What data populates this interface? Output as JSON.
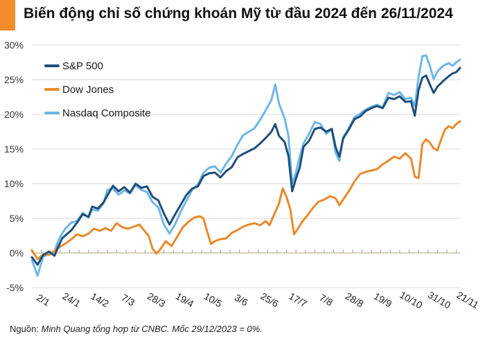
{
  "header": {
    "title": "Biến động chỉ số chứng khoán Mỹ từ đầu 2024 đến 26/11/2024",
    "accent_color": "#f28c28"
  },
  "footer": {
    "source_label": "Nguồn: ",
    "source_text": "Minh Quang tổng hợp từ CNBC. Mốc 29/12/2023 = 0%."
  },
  "chart_data": {
    "type": "line",
    "title": "Biến động chỉ số chứng khoán Mỹ từ đầu 2024 đến 26/11/2024",
    "ylim": [
      -5,
      30
    ],
    "yticks": [
      -5,
      0,
      5,
      10,
      15,
      20,
      25,
      30
    ],
    "ytick_labels": [
      "-5%",
      "0%",
      "5%",
      "10%",
      "15%",
      "20%",
      "25%",
      "30%"
    ],
    "xtick_labels": [
      "2/1",
      "24/1",
      "14/2",
      "7/3",
      "28/3",
      "19/4",
      "10/5",
      "3/6",
      "25/6",
      "17/7",
      "7/8",
      "28/8",
      "19/9",
      "10/10",
      "31/10",
      "21/11"
    ],
    "grid": "horizontal",
    "legend_position": "top-left",
    "x_index": [
      0,
      15,
      30,
      45,
      60,
      75,
      90,
      105,
      120,
      135,
      150,
      165,
      180,
      195,
      210,
      225
    ],
    "n_points": 228,
    "series": [
      {
        "name": "S&P 500",
        "color": "#1f4e79",
        "points": [
          [
            0,
            -0.6
          ],
          [
            3,
            -1.7
          ],
          [
            6,
            -0.3
          ],
          [
            9,
            0.2
          ],
          [
            12,
            -0.4
          ],
          [
            14,
            0.9
          ],
          [
            16,
            2.1
          ],
          [
            18,
            2.6
          ],
          [
            21,
            3.3
          ],
          [
            24,
            4.4
          ],
          [
            27,
            5.6
          ],
          [
            30,
            5.2
          ],
          [
            32,
            6.7
          ],
          [
            35,
            6.4
          ],
          [
            38,
            7.3
          ],
          [
            40,
            8.3
          ],
          [
            43,
            9.7
          ],
          [
            46,
            8.9
          ],
          [
            49,
            9.5
          ],
          [
            52,
            8.7
          ],
          [
            55,
            10.0
          ],
          [
            58,
            9.4
          ],
          [
            61,
            9.6
          ],
          [
            64,
            8.1
          ],
          [
            67,
            7.6
          ],
          [
            70,
            5.7
          ],
          [
            73,
            4.1
          ],
          [
            76,
            5.6
          ],
          [
            79,
            7.0
          ],
          [
            82,
            8.4
          ],
          [
            85,
            9.3
          ],
          [
            88,
            9.6
          ],
          [
            91,
            11.1
          ],
          [
            94,
            11.5
          ],
          [
            97,
            11.6
          ],
          [
            100,
            10.9
          ],
          [
            103,
            11.8
          ],
          [
            106,
            12.4
          ],
          [
            109,
            13.8
          ],
          [
            112,
            14.3
          ],
          [
            115,
            14.7
          ],
          [
            118,
            15.1
          ],
          [
            121,
            15.8
          ],
          [
            124,
            16.6
          ],
          [
            127,
            17.5
          ],
          [
            129,
            18.6
          ],
          [
            131,
            16.9
          ],
          [
            134,
            16.0
          ],
          [
            136,
            14.0
          ],
          [
            138,
            8.9
          ],
          [
            140,
            10.7
          ],
          [
            142,
            12.3
          ],
          [
            144,
            15.3
          ],
          [
            147,
            16.2
          ],
          [
            150,
            17.9
          ],
          [
            153,
            18.1
          ],
          [
            156,
            17.5
          ],
          [
            159,
            17.9
          ],
          [
            161,
            15.3
          ],
          [
            163,
            13.9
          ],
          [
            165,
            16.5
          ],
          [
            168,
            17.8
          ],
          [
            171,
            19.3
          ],
          [
            174,
            19.7
          ],
          [
            177,
            20.5
          ],
          [
            180,
            20.9
          ],
          [
            183,
            21.2
          ],
          [
            186,
            20.9
          ],
          [
            189,
            22.4
          ],
          [
            192,
            22.2
          ],
          [
            195,
            22.6
          ],
          [
            198,
            21.8
          ],
          [
            201,
            21.9
          ],
          [
            203,
            19.8
          ],
          [
            205,
            23.5
          ],
          [
            207,
            25.3
          ],
          [
            209,
            25.6
          ],
          [
            211,
            24.3
          ],
          [
            213,
            23.1
          ],
          [
            215,
            24.0
          ],
          [
            218,
            24.8
          ],
          [
            221,
            25.5
          ],
          [
            223,
            25.9
          ],
          [
            225,
            26.1
          ],
          [
            227,
            26.7
          ]
        ]
      },
      {
        "name": "Dow Jones",
        "color": "#e8892c",
        "points": [
          [
            0,
            0.4
          ],
          [
            3,
            -0.9
          ],
          [
            6,
            -0.2
          ],
          [
            9,
            -0.3
          ],
          [
            12,
            0.3
          ],
          [
            15,
            0.9
          ],
          [
            18,
            1.4
          ],
          [
            21,
            2.0
          ],
          [
            24,
            2.7
          ],
          [
            27,
            2.4
          ],
          [
            30,
            2.8
          ],
          [
            33,
            3.5
          ],
          [
            36,
            3.2
          ],
          [
            39,
            3.6
          ],
          [
            42,
            3.2
          ],
          [
            45,
            4.3
          ],
          [
            48,
            3.7
          ],
          [
            51,
            3.5
          ],
          [
            54,
            3.8
          ],
          [
            57,
            4.1
          ],
          [
            60,
            3.1
          ],
          [
            62,
            2.4
          ],
          [
            64,
            0.6
          ],
          [
            66,
            -0.1
          ],
          [
            68,
            0.5
          ],
          [
            71,
            1.7
          ],
          [
            74,
            1.0
          ],
          [
            77,
            2.3
          ],
          [
            80,
            3.7
          ],
          [
            83,
            4.5
          ],
          [
            86,
            5.1
          ],
          [
            89,
            5.3
          ],
          [
            91,
            5.0
          ],
          [
            93,
            3.0
          ],
          [
            95,
            1.3
          ],
          [
            97,
            1.7
          ],
          [
            100,
            2.0
          ],
          [
            103,
            2.1
          ],
          [
            106,
            2.9
          ],
          [
            109,
            3.3
          ],
          [
            112,
            3.8
          ],
          [
            115,
            4.1
          ],
          [
            118,
            4.3
          ],
          [
            121,
            4.0
          ],
          [
            124,
            4.6
          ],
          [
            126,
            4.0
          ],
          [
            128,
            5.3
          ],
          [
            131,
            7.1
          ],
          [
            133,
            9.3
          ],
          [
            135,
            8.1
          ],
          [
            137,
            6.3
          ],
          [
            139,
            2.7
          ],
          [
            141,
            3.5
          ],
          [
            143,
            4.4
          ],
          [
            146,
            5.4
          ],
          [
            149,
            6.5
          ],
          [
            152,
            7.4
          ],
          [
            155,
            7.7
          ],
          [
            158,
            8.2
          ],
          [
            161,
            7.9
          ],
          [
            163,
            6.9
          ],
          [
            165,
            7.7
          ],
          [
            168,
            8.9
          ],
          [
            171,
            10.3
          ],
          [
            174,
            11.4
          ],
          [
            177,
            11.7
          ],
          [
            180,
            11.9
          ],
          [
            183,
            12.1
          ],
          [
            186,
            12.8
          ],
          [
            189,
            13.3
          ],
          [
            192,
            13.9
          ],
          [
            195,
            13.6
          ],
          [
            198,
            14.4
          ],
          [
            201,
            13.6
          ],
          [
            203,
            11.0
          ],
          [
            205,
            10.8
          ],
          [
            207,
            15.7
          ],
          [
            209,
            16.4
          ],
          [
            211,
            15.9
          ],
          [
            213,
            15.1
          ],
          [
            215,
            14.8
          ],
          [
            217,
            16.4
          ],
          [
            219,
            17.8
          ],
          [
            221,
            18.3
          ],
          [
            223,
            18.0
          ],
          [
            225,
            18.6
          ],
          [
            227,
            19.0
          ]
        ]
      },
      {
        "name": "Nasdaq Composite",
        "color": "#6eb6e8",
        "points": [
          [
            0,
            -1.0
          ],
          [
            3,
            -3.3
          ],
          [
            6,
            -0.5
          ],
          [
            9,
            -0.2
          ],
          [
            12,
            0.2
          ],
          [
            14,
            1.8
          ],
          [
            16,
            2.8
          ],
          [
            18,
            3.6
          ],
          [
            21,
            4.4
          ],
          [
            24,
            4.6
          ],
          [
            27,
            5.8
          ],
          [
            30,
            5.1
          ],
          [
            32,
            6.3
          ],
          [
            35,
            6.1
          ],
          [
            38,
            7.2
          ],
          [
            40,
            9.1
          ],
          [
            43,
            9.3
          ],
          [
            46,
            8.4
          ],
          [
            49,
            9.0
          ],
          [
            52,
            8.6
          ],
          [
            55,
            9.8
          ],
          [
            58,
            9.1
          ],
          [
            61,
            8.8
          ],
          [
            64,
            7.3
          ],
          [
            67,
            6.6
          ],
          [
            70,
            4.1
          ],
          [
            73,
            2.8
          ],
          [
            76,
            4.2
          ],
          [
            79,
            6.0
          ],
          [
            82,
            7.6
          ],
          [
            85,
            9.1
          ],
          [
            88,
            9.9
          ],
          [
            91,
            11.6
          ],
          [
            94,
            12.3
          ],
          [
            97,
            12.5
          ],
          [
            100,
            11.6
          ],
          [
            103,
            12.9
          ],
          [
            106,
            14.0
          ],
          [
            109,
            15.6
          ],
          [
            112,
            17.0
          ],
          [
            115,
            17.5
          ],
          [
            118,
            18.0
          ],
          [
            121,
            19.2
          ],
          [
            124,
            20.6
          ],
          [
            127,
            22.1
          ],
          [
            129,
            24.3
          ],
          [
            131,
            21.6
          ],
          [
            134,
            19.4
          ],
          [
            136,
            16.9
          ],
          [
            138,
            10.0
          ],
          [
            140,
            11.6
          ],
          [
            142,
            13.9
          ],
          [
            144,
            15.8
          ],
          [
            147,
            17.2
          ],
          [
            150,
            18.9
          ],
          [
            153,
            18.6
          ],
          [
            156,
            17.2
          ],
          [
            159,
            17.8
          ],
          [
            161,
            14.5
          ],
          [
            163,
            13.3
          ],
          [
            165,
            16.7
          ],
          [
            168,
            18.0
          ],
          [
            171,
            19.6
          ],
          [
            174,
            20.1
          ],
          [
            177,
            20.7
          ],
          [
            180,
            21.1
          ],
          [
            183,
            21.4
          ],
          [
            186,
            21.0
          ],
          [
            189,
            23.1
          ],
          [
            192,
            22.8
          ],
          [
            195,
            23.2
          ],
          [
            198,
            22.2
          ],
          [
            201,
            22.4
          ],
          [
            203,
            21.2
          ],
          [
            205,
            25.4
          ],
          [
            207,
            28.4
          ],
          [
            209,
            28.5
          ],
          [
            211,
            27.0
          ],
          [
            213,
            25.1
          ],
          [
            215,
            26.2
          ],
          [
            218,
            27.0
          ],
          [
            221,
            27.4
          ],
          [
            223,
            27.0
          ],
          [
            225,
            27.5
          ],
          [
            227,
            27.9
          ]
        ]
      }
    ]
  }
}
